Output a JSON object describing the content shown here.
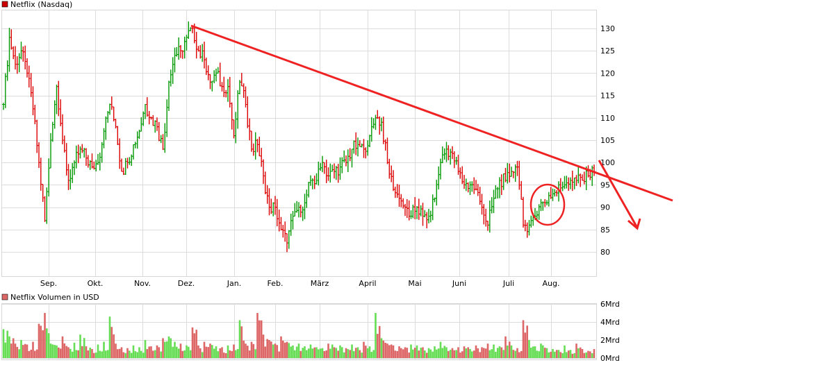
{
  "chart_data": [
    {
      "type": "ohlc",
      "title": "Netflix (Nasdaq)",
      "legend_color": "#cc0000",
      "x_tick_labels": [
        "Sep.",
        "Okt.",
        "Nov.",
        "Dez.",
        "Jan.",
        "Feb.",
        "März",
        "April",
        "Mai",
        "Juni",
        "Juli",
        "Aug."
      ],
      "y_tick_labels": [
        "130",
        "125",
        "120",
        "115",
        "110",
        "105",
        "100",
        "95",
        "90",
        "85",
        "80"
      ],
      "ylim": [
        76,
        133.5
      ],
      "grid": true,
      "up_color": "#009900",
      "down_color": "#dd0000",
      "close": [
        113,
        128,
        122,
        125,
        120,
        112,
        100,
        87,
        105,
        117,
        105,
        96,
        100,
        103,
        101,
        99,
        100,
        107,
        113,
        108,
        98,
        100,
        104,
        107,
        113,
        110,
        108,
        103,
        118,
        124,
        125,
        128,
        130,
        125,
        123,
        118,
        120,
        117,
        117,
        106,
        118,
        113,
        103,
        104,
        97,
        90,
        90,
        85,
        82,
        88,
        90,
        91,
        96,
        96,
        100,
        97,
        98,
        99,
        100,
        103,
        104,
        103,
        106,
        110,
        109,
        100,
        94,
        92,
        90,
        88,
        90,
        88,
        88,
        92,
        100,
        103,
        102,
        98,
        95,
        95,
        94,
        90,
        86,
        92,
        96,
        96,
        98,
        99,
        86,
        86,
        88,
        91,
        91,
        93,
        95,
        95,
        96,
        96,
        96,
        97,
        98
      ],
      "annotations": {
        "trendline": {
          "from": [
            "Dez.",
            130.5
          ],
          "to": [
            "after Aug.",
            89
          ],
          "color": "#ee2222"
        },
        "arrow": {
          "direction": "down-right",
          "color": "#ee2222"
        },
        "circle": {
          "around": "Juli lows ~85-92",
          "color": "#ee2222"
        }
      }
    },
    {
      "type": "bar",
      "title": "Netflix Volumen in USD",
      "legend_color": "#dd6666",
      "y_tick_labels": [
        "6Mrd",
        "4Mrd",
        "2Mrd",
        "0Mrd"
      ],
      "ylim": [
        0,
        6
      ],
      "up_color": "#66dd55",
      "down_color": "#dd6666",
      "values": [
        3.2,
        2.4,
        1.6,
        2.0,
        1.5,
        1.8,
        3.8,
        5.0,
        1.6,
        1.4,
        2.4,
        1.2,
        1.7,
        2.6,
        1.3,
        1.0,
        1.5,
        1.8,
        4.6,
        1.6,
        1.2,
        1.1,
        1.4,
        1.2,
        2.0,
        1.3,
        1.4,
        2.2,
        2.4,
        1.8,
        1.6,
        1.4,
        3.4,
        1.4,
        1.8,
        1.6,
        1.3,
        1.2,
        1.4,
        1.5,
        4.2,
        1.6,
        1.8,
        5.0,
        2.6,
        2.0,
        1.6,
        2.4,
        1.8,
        1.4,
        1.6,
        1.3,
        1.5,
        1.2,
        1.1,
        1.6,
        1.2,
        1.4,
        1.1,
        1.5,
        1.2,
        1.8,
        1.3,
        5.0,
        2.2,
        1.6,
        1.4,
        1.3,
        1.2,
        1.5,
        1.4,
        1.2,
        1.1,
        1.3,
        1.8,
        1.2,
        1.1,
        1.2,
        1.3,
        1.0,
        1.4,
        1.2,
        1.6,
        1.5,
        1.3,
        2.4,
        1.4,
        1.1,
        4.2,
        2.0,
        1.3,
        1.6,
        1.1,
        1.0,
        0.9,
        1.4,
        0.9,
        1.6,
        1.0,
        0.8,
        1.0
      ]
    }
  ]
}
